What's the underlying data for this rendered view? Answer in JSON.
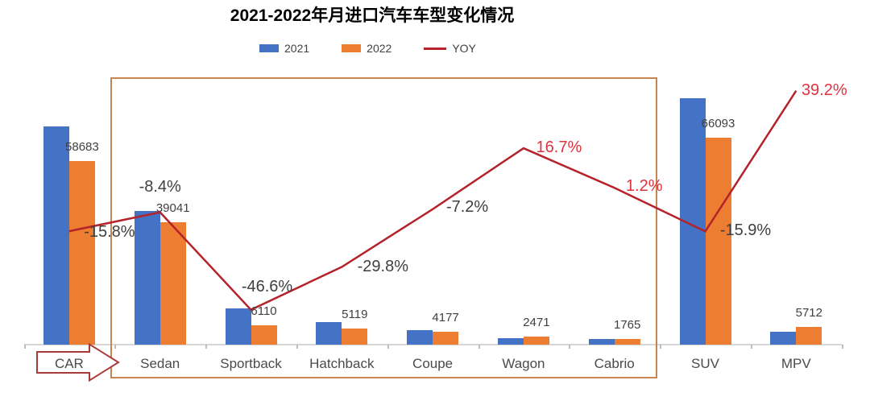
{
  "title": "2021-2022年月进口汽车车型变化情况",
  "legend": {
    "items": [
      {
        "label": "2021",
        "color": "#4472c4",
        "swatch": "rect"
      },
      {
        "label": "2022",
        "color": "#ed7d31",
        "swatch": "rect"
      },
      {
        "label": "YOY",
        "color": "#b5222a",
        "swatch": "line"
      }
    ]
  },
  "colors": {
    "bar_2021": "#4472c4",
    "bar_2022": "#ed7d31",
    "yoy_line": "#b5222a",
    "yoy_label_positive": "#e0323e",
    "yoy_label_negative": "#3f3f3f",
    "value_label": "#404040",
    "highlight_box_border": "#c9854f",
    "arrow_border": "#a93a3a",
    "arrow_fill": "#ffffff",
    "axis_line": "#d6d6d6",
    "axis_tick": "#bdbdbd"
  },
  "annotations": {
    "arrow_category": "CAR",
    "boxed_categories": [
      "Sedan",
      "Sportback",
      "Hatchback",
      "Coupe",
      "Wagon",
      "Cabrio"
    ]
  },
  "chart_data": {
    "type": "bar",
    "subtype": "grouped-bar with line overlay (combo chart)",
    "title": "2021-2022年月进口汽车车型变化情况",
    "categories": [
      "CAR",
      "Sedan",
      "Sportback",
      "Hatchback",
      "Coupe",
      "Wagon",
      "Cabrio",
      "SUV",
      "MPV"
    ],
    "series": [
      {
        "name": "2021",
        "type": "bar",
        "color": "#4472c4",
        "values": [
          69695,
          42621,
          11442,
          7292,
          4501,
          2117,
          1744,
          78588,
          4103
        ],
        "values_note": "not labeled in image; estimated from bar heights and YOY %"
      },
      {
        "name": "2022",
        "type": "bar",
        "color": "#ed7d31",
        "values": [
          58683,
          39041,
          6110,
          5119,
          4177,
          2471,
          1765,
          66093,
          5712
        ]
      },
      {
        "name": "YOY",
        "type": "line",
        "color": "#b5222a",
        "unit": "%",
        "values": [
          -15.8,
          -8.4,
          -46.6,
          -29.8,
          -7.2,
          16.7,
          1.2,
          -15.9,
          39.2
        ]
      }
    ],
    "data_labels": {
      "values_2022": [
        "58683",
        "39041",
        "6110",
        "5119",
        "4177",
        "2471",
        "1765",
        "66093",
        "5712"
      ],
      "yoy": [
        "-15.8%",
        "-8.4%",
        "-46.6%",
        "-29.8%",
        "-7.2%",
        "16.7%",
        "1.2%",
        "-15.9%",
        "39.2%"
      ]
    },
    "value_axis": {
      "visible": false,
      "min": 0,
      "approx_max": 86000
    },
    "yoy_axis": {
      "visible": false
    },
    "grid": false,
    "legend_position": "top-center"
  }
}
